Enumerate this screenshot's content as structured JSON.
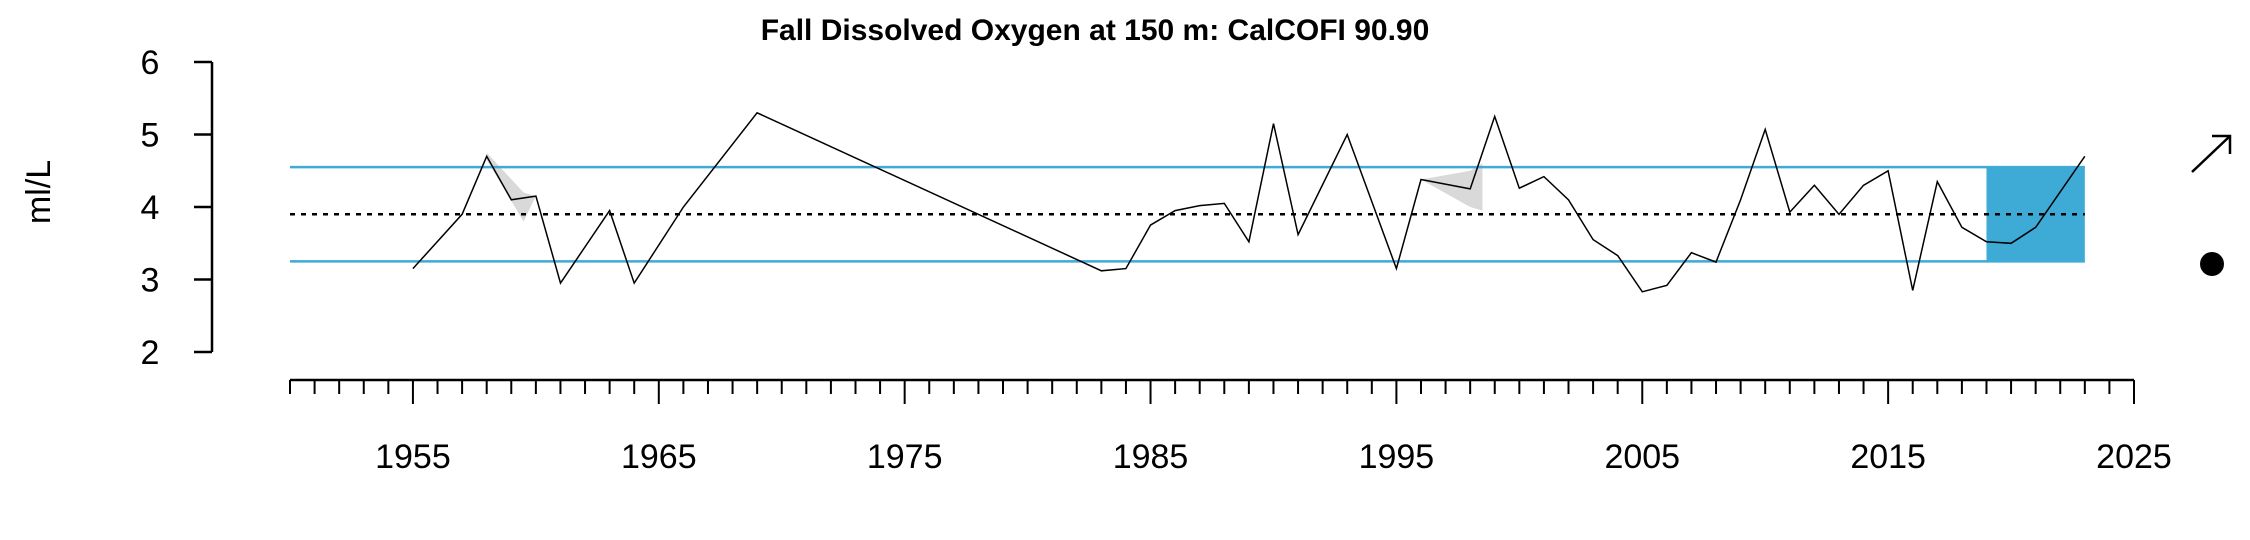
{
  "chart_data": {
    "type": "line",
    "title": "Fall Dissolved Oxygen at 150 m: CalCOFI 90.90",
    "xlabel": "",
    "ylabel": "ml/L",
    "xlim": [
      1950,
      2025
    ],
    "ylim": [
      2,
      6
    ],
    "x_ticks": [
      1955,
      1965,
      1975,
      1985,
      1995,
      2005,
      2015,
      2025
    ],
    "y_ticks": [
      2,
      3,
      4,
      5,
      6
    ],
    "grid": false,
    "legend": "none",
    "series": [
      {
        "x": [
          1955,
          1957,
          1958,
          1959,
          1960,
          1961,
          1963,
          1964,
          1966,
          1969,
          1983,
          1984,
          1985,
          1986,
          1987,
          1988,
          1989,
          1990,
          1991,
          1993,
          1995,
          1996,
          1998,
          1999,
          2000,
          2001,
          2002,
          2003,
          2004,
          2005,
          2006,
          2007,
          2008,
          2009,
          2010,
          2011,
          2012,
          2013,
          2014,
          2015,
          2016,
          2017,
          2018,
          2019,
          2020,
          2021,
          2023
        ],
        "y": [
          3.15,
          3.9,
          4.7,
          4.1,
          4.15,
          2.95,
          3.95,
          2.95,
          4.0,
          5.3,
          3.12,
          3.15,
          3.75,
          3.95,
          4.02,
          4.05,
          3.52,
          5.15,
          3.62,
          5.0,
          3.15,
          4.38,
          4.25,
          5.25,
          4.26,
          4.42,
          4.1,
          3.55,
          3.33,
          2.83,
          2.92,
          3.37,
          3.24,
          4.1,
          5.07,
          3.93,
          4.3,
          3.9,
          4.3,
          4.5,
          2.85,
          4.35,
          3.72,
          3.52,
          3.5,
          3.72,
          4.7
        ]
      }
    ],
    "mean": 3.9,
    "sd_upper": 4.55,
    "sd_lower": 3.25,
    "error_bands": [
      {
        "x": [
          1958,
          1959.5,
          1960
        ],
        "upper": [
          4.75,
          4.2,
          4.15
        ],
        "lower": [
          4.65,
          3.8,
          4.15
        ]
      },
      {
        "x": [
          1996,
          1998,
          1998.5
        ],
        "upper": [
          4.38,
          4.5,
          4.6
        ],
        "lower": [
          4.38,
          4.0,
          3.95
        ]
      }
    ],
    "highlight": {
      "x_start": 2019,
      "x_end": 2023
    },
    "trend_symbol": "arrow-up-right",
    "mean_symbol": "filled-circle",
    "colors": {
      "line": "#000000",
      "sd_lines": "#3eaad6",
      "highlight": "#3eaad6",
      "band": "#d9d9d9",
      "mean_line": "#000000"
    }
  }
}
